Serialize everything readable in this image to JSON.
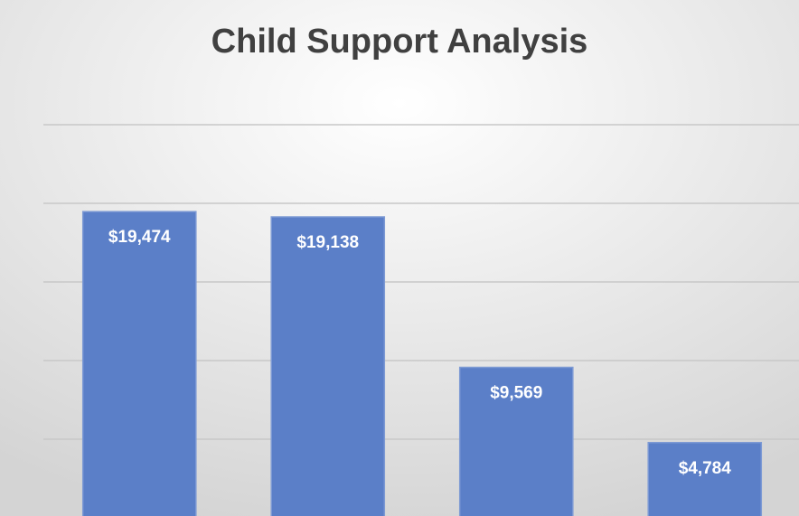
{
  "chart_data": {
    "type": "bar",
    "title": "Child Support Analysis",
    "values": [
      19474,
      19138,
      9569,
      4784
    ],
    "value_labels": [
      "$19,474",
      "$19,138",
      "$9,569",
      "$4,784"
    ],
    "color": "#5b7fc8",
    "ylim": [
      0,
      25000
    ],
    "yticks": [
      0,
      5000,
      10000,
      15000,
      20000,
      25000
    ],
    "grid": true
  }
}
